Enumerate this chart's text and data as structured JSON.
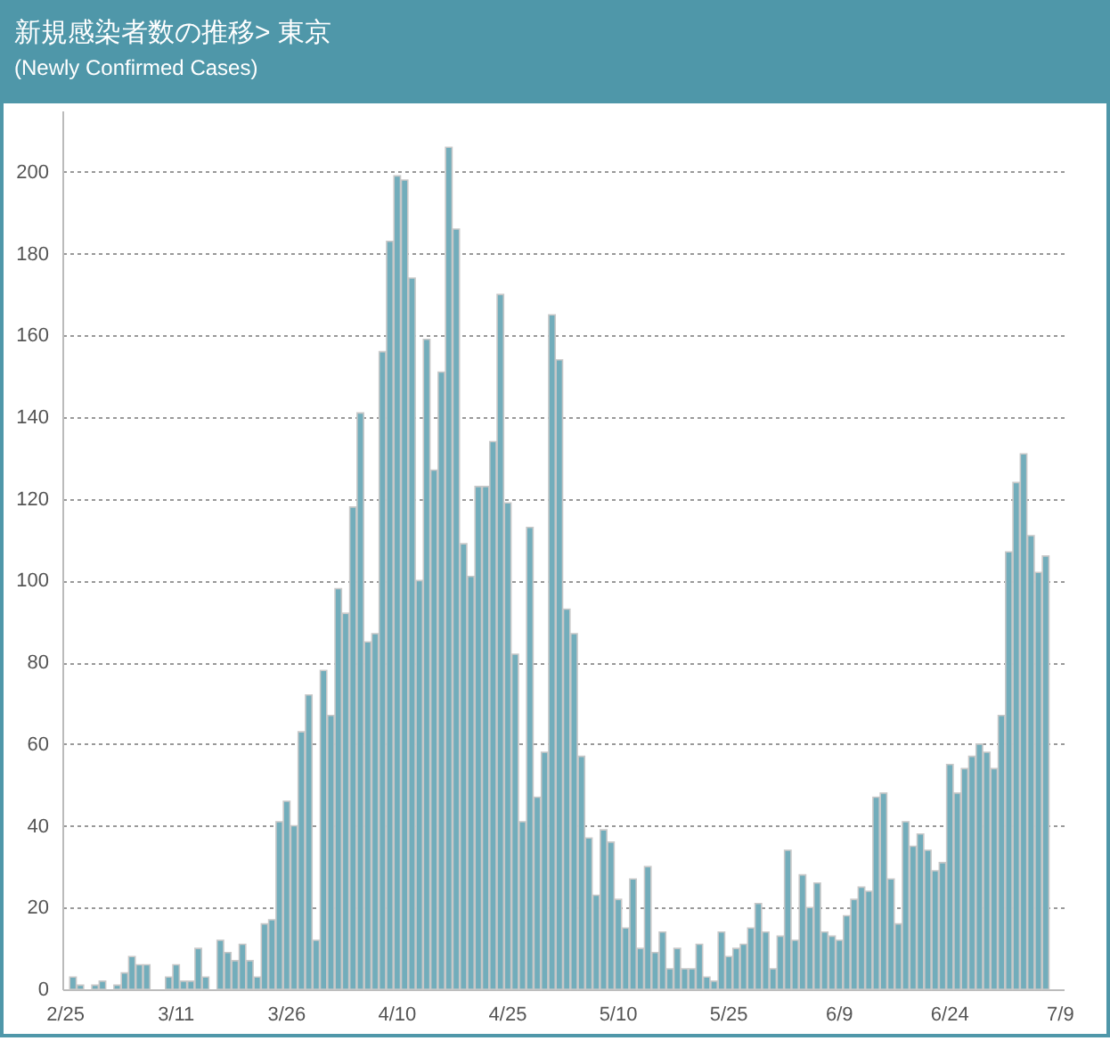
{
  "chart_data": {
    "type": "bar",
    "title": "新規感染者数の推移> 東京",
    "subtitle": "(Newly Confirmed Cases)",
    "color": "#72adbb",
    "grid": "y",
    "ylim": [
      0,
      215
    ],
    "yticks": [
      0,
      20,
      40,
      60,
      80,
      100,
      120,
      140,
      160,
      180,
      200
    ],
    "categories": [
      "2/25",
      null,
      null,
      null,
      null,
      null,
      null,
      null,
      null,
      null,
      null,
      null,
      null,
      null,
      null,
      "3/11",
      null,
      null,
      null,
      null,
      null,
      null,
      null,
      null,
      null,
      null,
      null,
      null,
      null,
      null,
      "3/26",
      null,
      null,
      null,
      null,
      null,
      null,
      null,
      null,
      null,
      null,
      null,
      null,
      null,
      null,
      "4/10",
      null,
      null,
      null,
      null,
      null,
      null,
      null,
      null,
      null,
      null,
      null,
      null,
      null,
      null,
      "4/25",
      null,
      null,
      null,
      null,
      null,
      null,
      null,
      null,
      null,
      null,
      null,
      null,
      null,
      null,
      "5/10",
      null,
      null,
      null,
      null,
      null,
      null,
      null,
      null,
      null,
      null,
      null,
      null,
      null,
      null,
      "5/25",
      null,
      null,
      null,
      null,
      null,
      null,
      null,
      null,
      null,
      null,
      null,
      null,
      null,
      null,
      "6/9",
      null,
      null,
      null,
      null,
      null,
      null,
      null,
      null,
      null,
      null,
      null,
      null,
      null,
      null,
      "6/24",
      null,
      null,
      null,
      null,
      null,
      null,
      null,
      null,
      null,
      null,
      null,
      null,
      null,
      null,
      "7/9"
    ],
    "values": [
      null,
      3,
      1,
      0,
      1,
      2,
      0,
      1,
      4,
      8,
      6,
      6,
      0,
      0,
      3,
      6,
      2,
      2,
      10,
      3,
      0,
      12,
      9,
      7,
      11,
      7,
      3,
      16,
      17,
      41,
      46,
      40,
      63,
      72,
      12,
      78,
      67,
      98,
      92,
      118,
      141,
      85,
      87,
      156,
      183,
      199,
      198,
      174,
      100,
      159,
      127,
      151,
      206,
      186,
      109,
      101,
      123,
      123,
      134,
      170,
      119,
      82,
      41,
      113,
      47,
      58,
      165,
      154,
      93,
      87,
      57,
      37,
      23,
      39,
      36,
      22,
      15,
      27,
      10,
      30,
      9,
      14,
      5,
      10,
      5,
      5,
      11,
      3,
      2,
      14,
      8,
      10,
      11,
      15,
      21,
      14,
      5,
      13,
      34,
      12,
      28,
      20,
      26,
      14,
      13,
      12,
      18,
      22,
      25,
      24,
      47,
      48,
      27,
      16,
      41,
      35,
      38,
      34,
      29,
      31,
      55,
      48,
      54,
      57,
      60,
      58,
      54,
      67,
      107,
      124,
      131,
      111,
      102,
      106,
      null,
      null
    ]
  }
}
